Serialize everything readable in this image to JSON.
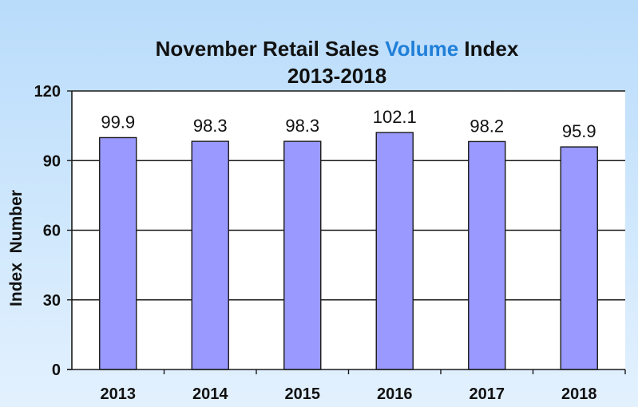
{
  "chart_data": {
    "type": "bar",
    "title_part1": "November Retail Sales ",
    "title_highlight": "Volume",
    "title_part2": " Index",
    "subtitle": "2013-2018",
    "xlabel": "",
    "ylabel": "Index  Number",
    "categories": [
      "2013",
      "2014",
      "2015",
      "2016",
      "2017",
      "2018"
    ],
    "values": [
      99.9,
      98.3,
      98.3,
      102.1,
      98.2,
      95.9
    ],
    "value_labels": [
      "99.9",
      "98.3",
      "98.3",
      "102.1",
      "98.2",
      "95.9"
    ],
    "ylim": [
      0,
      120
    ],
    "yticks": [
      0,
      30,
      60,
      90,
      120
    ],
    "grid": true,
    "legend": "none",
    "colors": {
      "bar_fill": "#9999ff",
      "bar_stroke": "#1a1a1a",
      "title_highlight": "#1f7fd8",
      "background_top": "#b9dcfb",
      "background_bottom": "#e3f1fe",
      "plot_background": "#ffffff"
    }
  }
}
